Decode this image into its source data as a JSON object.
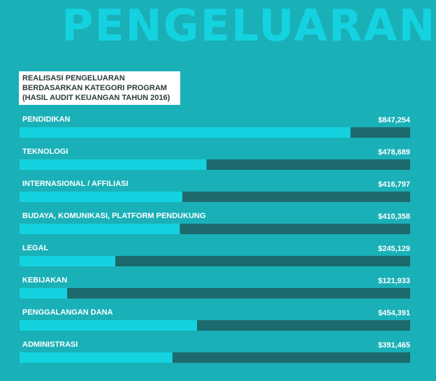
{
  "chart_data": {
    "type": "bar",
    "title": "PENGELUARAN",
    "subtitle_lines": [
      "REALISASI PENGELUARAN",
      "BERDASARKAN KATEGORI PROGRAM",
      "(HASIL AUDIT KEUANGAN TAHUN 2016)"
    ],
    "categories": [
      "PENDIDIKAN",
      "TEKNOLOGI",
      "INTERNASIONAL / AFFILIASI",
      "BUDAYA, KOMUNIKASI, PLATFORM PENDUKUNG",
      "LEGAL",
      "KEBIJAKAN",
      "PENGGALANGAN DANA",
      "ADMINISTRASI"
    ],
    "value_labels": [
      "$847,254",
      "$478,689",
      "$416,797",
      "$410,358",
      "$245,129",
      "$121,933",
      "$454,391",
      "$391,465"
    ],
    "values": [
      847254,
      478689,
      416797,
      410358,
      245129,
      121933,
      454391,
      391465
    ],
    "xlim": [
      0,
      1000000
    ],
    "colors": {
      "bar": "#14d2e0",
      "track": "#1c6a6e",
      "background": "#1ab0b8",
      "text": "#ffffff"
    }
  }
}
